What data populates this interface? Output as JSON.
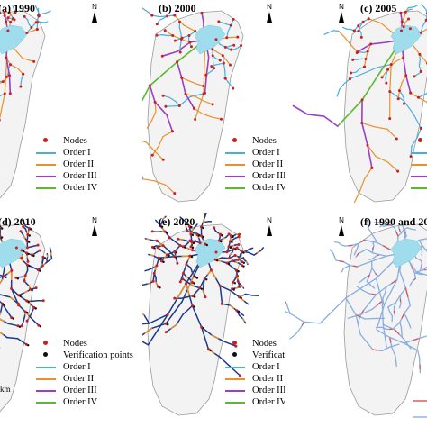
{
  "panels": [
    {
      "id": "a",
      "title": "(a) 1990",
      "type": "orders",
      "seed": 11,
      "density": 1.0,
      "legend": true
    },
    {
      "id": "b",
      "title": "(b) 2000",
      "type": "orders",
      "seed": 23,
      "density": 1.0,
      "legend": true
    },
    {
      "id": "c",
      "title": "(c) 2005",
      "type": "orders",
      "seed": 37,
      "density": 1.0,
      "legend": true
    },
    {
      "id": "d",
      "title": "(d) 2010",
      "type": "verify",
      "seed": 41,
      "density": 1.4,
      "legend": true
    },
    {
      "id": "e",
      "title": "(e) 2020",
      "type": "verify",
      "seed": 53,
      "density": 1.4,
      "legend": true
    },
    {
      "id": "f",
      "title": "(f) 1990 and 20",
      "type": "compare",
      "seed": 67,
      "density": 1.5,
      "legend": false
    }
  ],
  "north_label": "N",
  "scale_unit": "km",
  "legend_orders": [
    {
      "label": "Nodes",
      "kind": "dot",
      "color": "#cc1f1f"
    },
    {
      "label": "Order I",
      "kind": "line",
      "color": "#4aaee0"
    },
    {
      "label": "Order II",
      "kind": "line",
      "color": "#e8912a"
    },
    {
      "label": "Order III",
      "kind": "line",
      "color": "#9b3fc4"
    },
    {
      "label": "Order IV",
      "kind": "line",
      "color": "#5ab831"
    }
  ],
  "legend_verify": [
    {
      "label": "Nodes",
      "kind": "dot",
      "color": "#cc1f1f"
    },
    {
      "label": "Verification points",
      "kind": "dot",
      "color": "#111111"
    },
    {
      "label": "Order I",
      "kind": "line",
      "color": "#4aaee0"
    },
    {
      "label": "Order II",
      "kind": "line",
      "color": "#e8912a"
    },
    {
      "label": "Order III",
      "kind": "line",
      "color": "#9b3fc4"
    },
    {
      "label": "Order IV",
      "kind": "line",
      "color": "#5ab831"
    }
  ],
  "colors": {
    "basin_fill": "#f3f3f3",
    "basin_stroke": "#9a9a9a",
    "lake": "#9fdcec",
    "order1": "#4aaee0",
    "order2": "#e8912a",
    "order3": "#9b3fc4",
    "order4": "#5ab831",
    "node": "#cc1f1f",
    "verify": "#111111",
    "network_dark": "#1b3a8a",
    "compare_blue": "#8aaee0",
    "compare_red": "#d9534f"
  }
}
